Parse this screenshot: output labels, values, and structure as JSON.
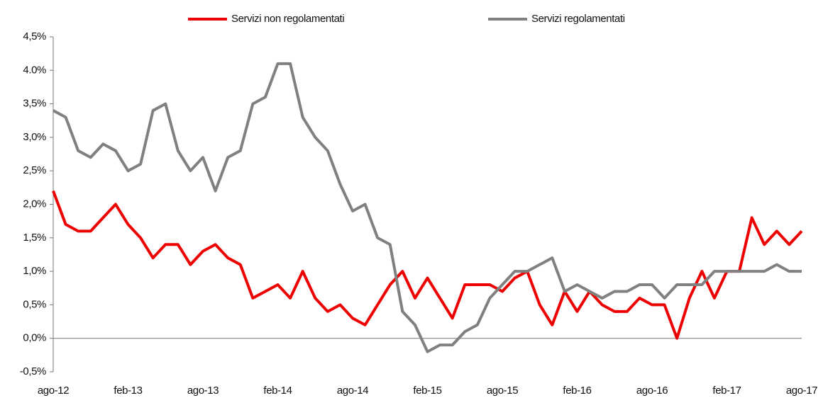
{
  "chart_data": {
    "type": "line",
    "categories": [
      "ago-12",
      null,
      null,
      null,
      null,
      null,
      "feb-13",
      null,
      null,
      null,
      null,
      null,
      "ago-13",
      null,
      null,
      null,
      null,
      null,
      "feb-14",
      null,
      null,
      null,
      null,
      null,
      "ago-14",
      null,
      null,
      null,
      null,
      null,
      "feb-15",
      null,
      null,
      null,
      null,
      null,
      "ago-15",
      null,
      null,
      null,
      null,
      null,
      "feb-16",
      null,
      null,
      null,
      null,
      null,
      "ago-16",
      null,
      null,
      null,
      null,
      null,
      "feb-17",
      null,
      null,
      null,
      null,
      null,
      "ago-17"
    ],
    "series": [
      {
        "name": "Servizi non regolamentati",
        "color": "#ee0000",
        "values": [
          2.2,
          1.7,
          1.6,
          1.6,
          1.8,
          2.0,
          1.7,
          1.5,
          1.2,
          1.4,
          1.4,
          1.1,
          1.3,
          1.4,
          1.2,
          1.1,
          0.6,
          0.7,
          0.8,
          0.6,
          1.0,
          0.6,
          0.4,
          0.5,
          0.3,
          0.2,
          0.5,
          0.8,
          1.0,
          0.6,
          0.9,
          0.6,
          0.3,
          0.8,
          0.8,
          0.8,
          0.7,
          0.9,
          1.0,
          0.5,
          0.2,
          0.7,
          0.4,
          0.7,
          0.5,
          0.4,
          0.4,
          0.6,
          0.5,
          0.5,
          0.0,
          0.6,
          1.0,
          0.6,
          1.0,
          1.0,
          1.8,
          1.4,
          1.6,
          1.4,
          1.6
        ]
      },
      {
        "name": "Servizi regolamentati",
        "color": "#808080",
        "values": [
          3.4,
          3.3,
          2.8,
          2.7,
          2.9,
          2.8,
          2.5,
          2.6,
          3.4,
          3.5,
          2.8,
          2.5,
          2.7,
          2.2,
          2.7,
          2.8,
          3.5,
          3.6,
          4.1,
          4.1,
          3.3,
          3.0,
          2.8,
          2.3,
          1.9,
          2.0,
          1.5,
          1.4,
          0.4,
          0.2,
          -0.2,
          -0.1,
          -0.1,
          0.1,
          0.2,
          0.6,
          0.8,
          1.0,
          1.0,
          1.1,
          1.2,
          0.7,
          0.8,
          0.7,
          0.6,
          0.7,
          0.7,
          0.8,
          0.8,
          0.6,
          0.8,
          0.8,
          0.8,
          1.0,
          1.0,
          1.0,
          1.0,
          1.0,
          1.1,
          1.0,
          1.0
        ]
      }
    ],
    "ylim": [
      -0.5,
      4.5
    ],
    "yticks": [
      {
        "value": -0.5,
        "label": "-0,5%"
      },
      {
        "value": 0,
        "label": "0,0%"
      },
      {
        "value": 0.5,
        "label": "0,5%"
      },
      {
        "value": 1.0,
        "label": "1,0%"
      },
      {
        "value": 1.5,
        "label": "1,5%"
      },
      {
        "value": 2.0,
        "label": "2,0%"
      },
      {
        "value": 2.5,
        "label": "2,5%"
      },
      {
        "value": 3.0,
        "label": "3,0%"
      },
      {
        "value": 3.5,
        "label": "3,5%"
      },
      {
        "value": 4.0,
        "label": "4.0%"
      },
      {
        "value": 4.5,
        "label": "4,5%"
      }
    ],
    "grid": false,
    "legend": "top"
  }
}
